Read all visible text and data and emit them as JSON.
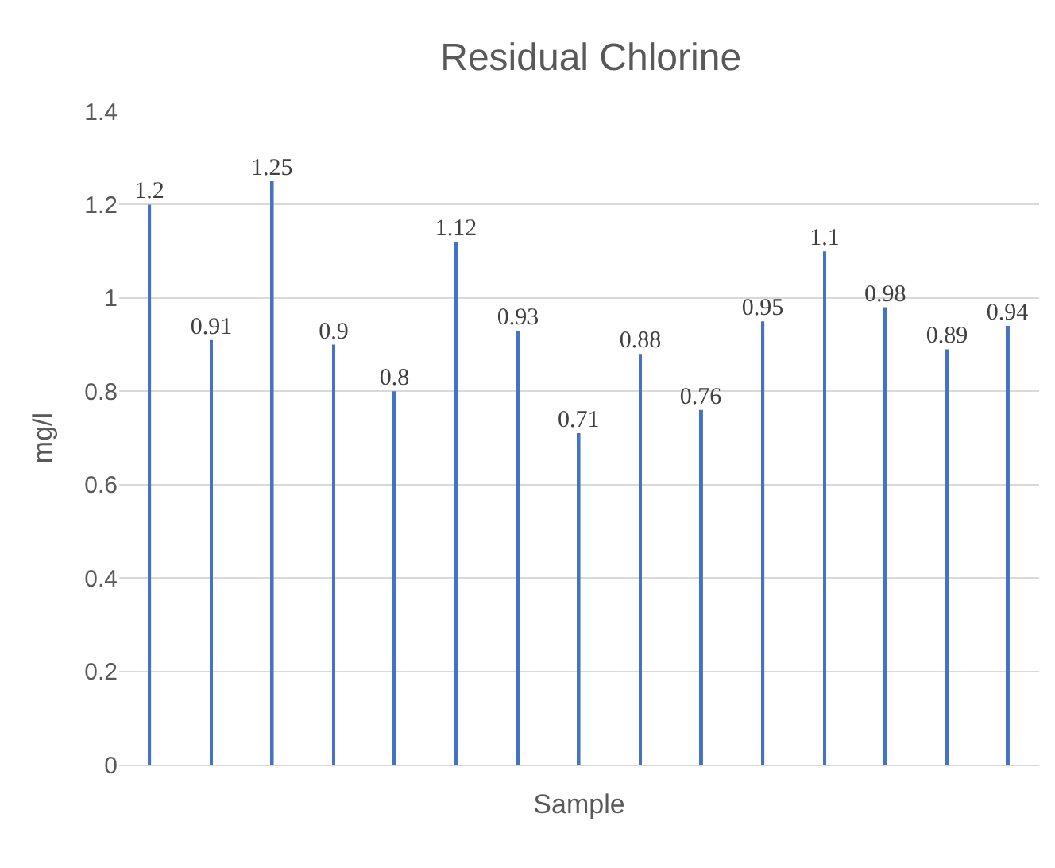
{
  "chart_data": {
    "type": "bar",
    "title": "Residual Chlorine",
    "xlabel": "Sample",
    "ylabel": "mg/l",
    "categories": [
      null,
      null,
      null,
      null,
      null,
      null,
      null,
      null,
      null,
      null,
      null,
      null,
      null,
      null,
      null
    ],
    "values": [
      1.2,
      0.91,
      1.25,
      0.9,
      0.8,
      1.12,
      0.93,
      0.71,
      0.88,
      0.76,
      0.95,
      1.1,
      0.98,
      0.89,
      0.94
    ],
    "color": "#4472c4",
    "data_labels": true,
    "ylim": [
      0,
      1.4
    ],
    "yticks": [
      0,
      0.2,
      0.4,
      0.6,
      0.8,
      1,
      1.2,
      1.4
    ],
    "grid": "y",
    "legend": false
  }
}
